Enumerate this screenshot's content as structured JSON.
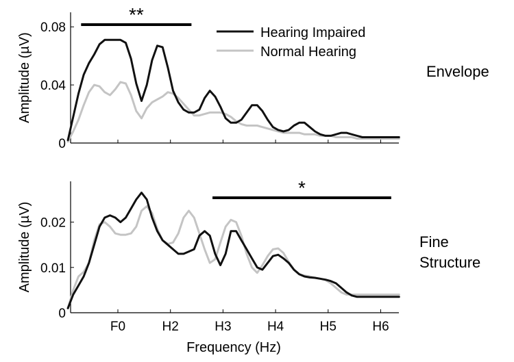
{
  "chart_data": [
    {
      "type": "line",
      "panel_label": "Envelope",
      "xlabel": "",
      "ylabel": "Amplitude (µV)",
      "ylim": [
        0,
        0.09
      ],
      "y_ticks": [
        "0",
        "0.04",
        "0.08"
      ],
      "y_tick_values": [
        0,
        0.04,
        0.08
      ],
      "x_categories": [
        "F0",
        "H2",
        "H3",
        "H4",
        "H5",
        "H6"
      ],
      "x_tick_labels_shown": false,
      "legend": {
        "placement": "top-right",
        "entries": [
          "Hearing Impaired",
          "Normal Hearing"
        ]
      },
      "significance": {
        "label": "**",
        "from": -0.7,
        "to": 1.4
      },
      "series": [
        {
          "name": "Hearing Impaired",
          "color": "#111111",
          "x": [
            -0.95,
            -0.85,
            -0.75,
            -0.65,
            -0.55,
            -0.45,
            -0.35,
            -0.25,
            -0.15,
            -0.05,
            0.05,
            0.15,
            0.25,
            0.35,
            0.45,
            0.55,
            0.65,
            0.75,
            0.85,
            0.95,
            1.05,
            1.15,
            1.25,
            1.35,
            1.45,
            1.55,
            1.65,
            1.75,
            1.85,
            1.95,
            2.05,
            2.15,
            2.25,
            2.35,
            2.45,
            2.55,
            2.65,
            2.75,
            2.85,
            2.95,
            3.05,
            3.15,
            3.25,
            3.35,
            3.45,
            3.55,
            3.65,
            3.75,
            3.85,
            3.95,
            4.05,
            4.15,
            4.25,
            4.35,
            4.45,
            4.55,
            4.65,
            4.75,
            4.85,
            4.95,
            5.05,
            5.15,
            5.25,
            5.35
          ],
          "y": [
            0.002,
            0.018,
            0.034,
            0.047,
            0.055,
            0.061,
            0.068,
            0.071,
            0.071,
            0.071,
            0.071,
            0.069,
            0.058,
            0.041,
            0.029,
            0.04,
            0.057,
            0.067,
            0.066,
            0.052,
            0.036,
            0.028,
            0.023,
            0.021,
            0.021,
            0.023,
            0.031,
            0.036,
            0.032,
            0.025,
            0.017,
            0.014,
            0.014,
            0.016,
            0.021,
            0.026,
            0.026,
            0.022,
            0.016,
            0.011,
            0.009,
            0.008,
            0.009,
            0.012,
            0.014,
            0.014,
            0.011,
            0.008,
            0.006,
            0.005,
            0.005,
            0.006,
            0.007,
            0.007,
            0.006,
            0.005,
            0.004,
            0.004,
            0.004,
            0.004,
            0.004,
            0.004,
            0.004,
            0.004
          ]
        },
        {
          "name": "Normal Hearing",
          "color": "#c4c4c4",
          "x": [
            -0.95,
            -0.85,
            -0.75,
            -0.65,
            -0.55,
            -0.45,
            -0.35,
            -0.25,
            -0.15,
            -0.05,
            0.05,
            0.15,
            0.25,
            0.35,
            0.45,
            0.55,
            0.65,
            0.75,
            0.85,
            0.95,
            1.05,
            1.15,
            1.25,
            1.35,
            1.45,
            1.55,
            1.65,
            1.75,
            1.85,
            1.95,
            2.05,
            2.15,
            2.25,
            2.35,
            2.45,
            2.55,
            2.65,
            2.75,
            2.85,
            2.95,
            3.05,
            3.15,
            3.25,
            3.35,
            3.45,
            3.55,
            3.65,
            3.75,
            3.85,
            3.95,
            4.05,
            4.15,
            4.25,
            4.35,
            4.45,
            4.55,
            4.65,
            4.75,
            4.85,
            4.95,
            5.05,
            5.15,
            5.25,
            5.35
          ],
          "y": [
            0.001,
            0.008,
            0.016,
            0.026,
            0.035,
            0.04,
            0.039,
            0.035,
            0.033,
            0.037,
            0.042,
            0.041,
            0.033,
            0.022,
            0.017,
            0.024,
            0.028,
            0.03,
            0.032,
            0.035,
            0.034,
            0.031,
            0.027,
            0.023,
            0.019,
            0.019,
            0.02,
            0.021,
            0.021,
            0.021,
            0.02,
            0.018,
            0.015,
            0.013,
            0.012,
            0.012,
            0.012,
            0.011,
            0.01,
            0.009,
            0.008,
            0.007,
            0.007,
            0.007,
            0.007,
            0.006,
            0.006,
            0.006,
            0.005,
            0.005,
            0.005,
            0.004,
            0.004,
            0.004,
            0.004,
            0.003,
            0.003,
            0.003,
            0.003,
            0.003,
            0.003,
            0.003,
            0.003,
            0.003
          ]
        }
      ]
    },
    {
      "type": "line",
      "panel_label_lines": [
        "Fine",
        "Structure"
      ],
      "xlabel": "Frequency (Hz)",
      "ylabel": "Amplitude (µV)",
      "ylim": [
        0,
        0.029
      ],
      "y_ticks": [
        "0",
        "0.01",
        "0.02"
      ],
      "y_tick_values": [
        0,
        0.01,
        0.02
      ],
      "x_categories": [
        "F0",
        "H2",
        "H3",
        "H4",
        "H5",
        "H6"
      ],
      "x_tick_labels_shown": true,
      "significance": {
        "label": "*",
        "from": 1.8,
        "to": 5.2
      },
      "series": [
        {
          "name": "Hearing Impaired",
          "color": "#111111",
          "x": [
            -0.95,
            -0.85,
            -0.75,
            -0.65,
            -0.55,
            -0.45,
            -0.35,
            -0.25,
            -0.15,
            -0.05,
            0.05,
            0.15,
            0.25,
            0.35,
            0.45,
            0.55,
            0.65,
            0.75,
            0.85,
            0.95,
            1.05,
            1.15,
            1.25,
            1.35,
            1.45,
            1.55,
            1.65,
            1.75,
            1.85,
            1.95,
            2.05,
            2.15,
            2.25,
            2.35,
            2.45,
            2.55,
            2.65,
            2.75,
            2.85,
            2.95,
            3.05,
            3.15,
            3.25,
            3.35,
            3.45,
            3.55,
            3.65,
            3.75,
            3.85,
            3.95,
            4.05,
            4.15,
            4.25,
            4.35,
            4.45,
            4.55,
            4.65,
            4.75,
            4.85,
            4.95,
            5.05,
            5.15,
            5.25,
            5.35
          ],
          "y": [
            0.001,
            0.004,
            0.006,
            0.008,
            0.011,
            0.015,
            0.019,
            0.021,
            0.0215,
            0.021,
            0.02,
            0.021,
            0.023,
            0.025,
            0.0265,
            0.025,
            0.021,
            0.018,
            0.016,
            0.015,
            0.014,
            0.013,
            0.013,
            0.0135,
            0.014,
            0.017,
            0.018,
            0.017,
            0.013,
            0.0105,
            0.013,
            0.018,
            0.018,
            0.016,
            0.014,
            0.012,
            0.01,
            0.0095,
            0.011,
            0.0125,
            0.0128,
            0.012,
            0.011,
            0.0095,
            0.0085,
            0.008,
            0.0078,
            0.0077,
            0.0075,
            0.0073,
            0.007,
            0.0065,
            0.0055,
            0.0045,
            0.0038,
            0.0035,
            0.0035,
            0.0035,
            0.0035,
            0.0035,
            0.0035,
            0.0035,
            0.0035,
            0.0035
          ]
        },
        {
          "name": "Normal Hearing",
          "color": "#c4c4c4",
          "x": [
            -0.95,
            -0.85,
            -0.75,
            -0.65,
            -0.55,
            -0.45,
            -0.35,
            -0.25,
            -0.15,
            -0.05,
            0.05,
            0.15,
            0.25,
            0.35,
            0.45,
            0.55,
            0.65,
            0.75,
            0.85,
            0.95,
            1.05,
            1.15,
            1.25,
            1.35,
            1.45,
            1.55,
            1.65,
            1.75,
            1.85,
            1.95,
            2.05,
            2.15,
            2.25,
            2.35,
            2.45,
            2.55,
            2.65,
            2.75,
            2.85,
            2.95,
            3.05,
            3.15,
            3.25,
            3.35,
            3.45,
            3.55,
            3.65,
            3.75,
            3.85,
            3.95,
            4.05,
            4.15,
            4.25,
            4.35,
            4.45,
            4.55,
            4.65,
            4.75,
            4.85,
            4.95,
            5.05,
            5.15,
            5.25,
            5.35
          ],
          "y": [
            0.001,
            0.005,
            0.008,
            0.009,
            0.011,
            0.016,
            0.0195,
            0.02,
            0.019,
            0.0175,
            0.0172,
            0.0172,
            0.0175,
            0.019,
            0.0225,
            0.0235,
            0.022,
            0.0185,
            0.016,
            0.0152,
            0.0155,
            0.0175,
            0.021,
            0.0225,
            0.021,
            0.0175,
            0.014,
            0.011,
            0.0118,
            0.0155,
            0.019,
            0.0205,
            0.02,
            0.017,
            0.013,
            0.01,
            0.0088,
            0.0105,
            0.0125,
            0.014,
            0.0142,
            0.0132,
            0.0112,
            0.0095,
            0.0085,
            0.0082,
            0.008,
            0.0077,
            0.0075,
            0.0072,
            0.0065,
            0.0055,
            0.0045,
            0.004,
            0.004,
            0.004,
            0.004,
            0.004,
            0.004,
            0.004,
            0.004,
            0.004,
            0.004,
            0.004
          ]
        }
      ]
    }
  ]
}
